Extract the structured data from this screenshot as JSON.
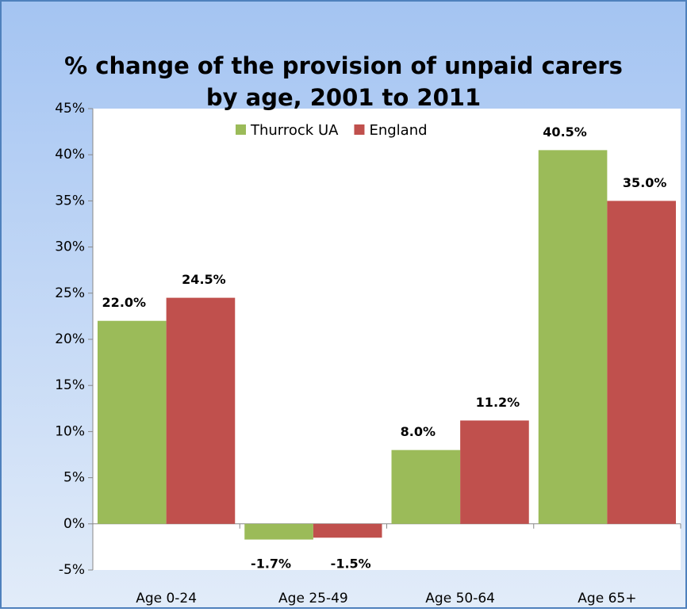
{
  "chart_data": {
    "type": "bar",
    "title": [
      "% change of the provision of unpaid carers",
      "by age, 2001 to 2011"
    ],
    "categories": [
      "Age 0-24",
      "Age 25-49",
      "Age 50-64",
      "Age 65+"
    ],
    "series": [
      {
        "name": "Thurrock UA",
        "color": "#9bbb59",
        "values": [
          22.0,
          -1.7,
          8.0,
          40.5
        ],
        "value_labels": [
          "22.0%",
          "-1.7%",
          "8.0%",
          "40.5%"
        ]
      },
      {
        "name": "England",
        "color": "#c0504d",
        "values": [
          24.5,
          -1.5,
          11.2,
          35.0
        ],
        "value_labels": [
          "24.5%",
          "-1.5%",
          "11.2%",
          "35.0%"
        ]
      }
    ],
    "ylim": [
      -5,
      45
    ],
    "yticks": [
      {
        "value": -5,
        "label": "-5%"
      },
      {
        "value": 0,
        "label": "0%"
      },
      {
        "value": 5,
        "label": "5%"
      },
      {
        "value": 10,
        "label": "10%"
      },
      {
        "value": 15,
        "label": "15%"
      },
      {
        "value": 20,
        "label": "20%"
      },
      {
        "value": 25,
        "label": "25%"
      },
      {
        "value": 30,
        "label": "30%"
      },
      {
        "value": 35,
        "label": "35%"
      },
      {
        "value": 40,
        "label": "40%"
      },
      {
        "value": 45,
        "label": "45%"
      }
    ],
    "legend": "top"
  }
}
